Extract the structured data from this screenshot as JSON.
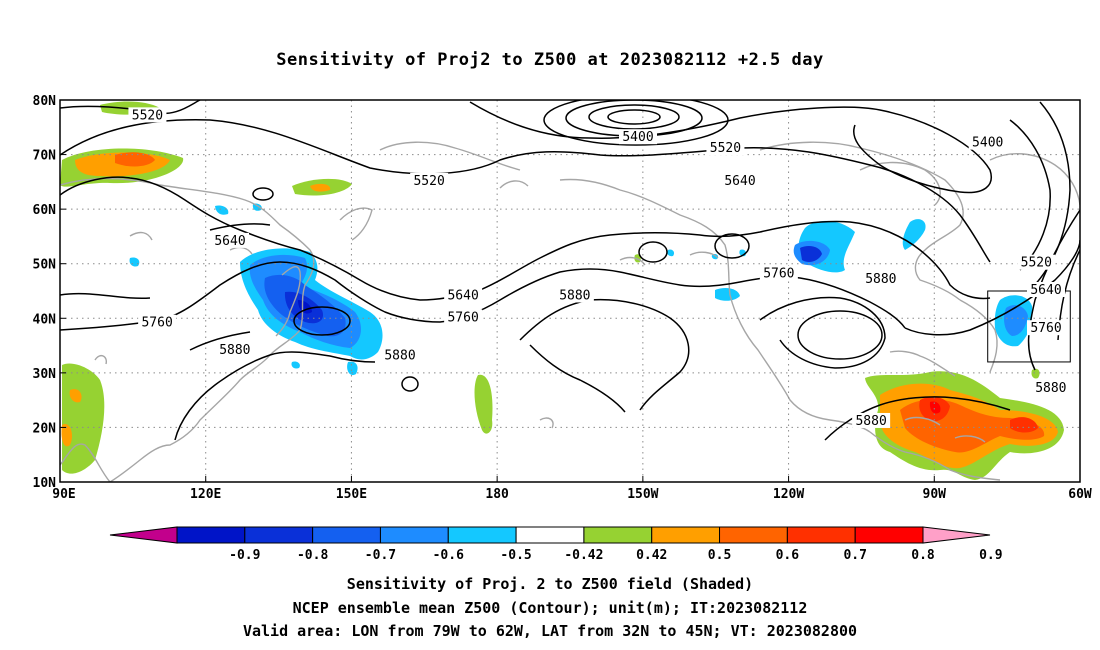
{
  "title": "Sensitivity of Proj2 to Z500 at 2023082112 +2.5 day",
  "axes": {
    "lon_ticks": [
      "90E",
      "120E",
      "150E",
      "180",
      "150W",
      "120W",
      "90W",
      "60W"
    ],
    "lat_ticks": [
      "10N",
      "20N",
      "30N",
      "40N",
      "50N",
      "60N",
      "70N",
      "80N"
    ],
    "lon_range": [
      90,
      300
    ],
    "lat_range": [
      10,
      80
    ],
    "gridlines": "dotted"
  },
  "contour_labels": [
    {
      "text": "5520",
      "lon": 108,
      "lat": 77
    },
    {
      "text": "5400",
      "lon": 209,
      "lat": 73
    },
    {
      "text": "5520",
      "lon": 227,
      "lat": 71
    },
    {
      "text": "5400",
      "lon": 281,
      "lat": 72
    },
    {
      "text": "5520",
      "lon": 166,
      "lat": 65
    },
    {
      "text": "5640",
      "lon": 230,
      "lat": 65
    },
    {
      "text": "5640",
      "lon": 125,
      "lat": 54
    },
    {
      "text": "5520",
      "lon": 291,
      "lat": 50
    },
    {
      "text": "5760",
      "lon": 238,
      "lat": 48
    },
    {
      "text": "5880",
      "lon": 259,
      "lat": 47
    },
    {
      "text": "5640",
      "lon": 293,
      "lat": 45
    },
    {
      "text": "5640",
      "lon": 173,
      "lat": 44
    },
    {
      "text": "5880",
      "lon": 196,
      "lat": 44
    },
    {
      "text": "5760",
      "lon": 173,
      "lat": 40
    },
    {
      "text": "5760",
      "lon": 110,
      "lat": 39
    },
    {
      "text": "5760",
      "lon": 293,
      "lat": 38
    },
    {
      "text": "5880",
      "lon": 126,
      "lat": 34
    },
    {
      "text": "5880",
      "lon": 160,
      "lat": 33
    },
    {
      "text": "5880",
      "lon": 294,
      "lat": 27
    },
    {
      "text": "5880",
      "lon": 257,
      "lat": 21
    }
  ],
  "valid_box": {
    "lon_min": 281,
    "lon_max": 298,
    "lat_min": 32,
    "lat_max": 45
  },
  "colorbar": {
    "labels": [
      "-0.9",
      "-0.8",
      "-0.7",
      "-0.6",
      "-0.5",
      "-0.42",
      "0.42",
      "0.5",
      "0.6",
      "0.7",
      "0.8",
      "0.9"
    ],
    "colors": [
      "#c2008c",
      "#0014c8",
      "#0a30d8",
      "#1460f0",
      "#1e8cff",
      "#14c8ff",
      "#ffffff",
      "#96d232",
      "#ff9f00",
      "#ff6400",
      "#ff3000",
      "#ff0000",
      "#ffa0c8"
    ]
  },
  "captions": [
    "Sensitivity of Proj. 2 to Z500 field (Shaded)",
    "NCEP ensemble mean Z500 (Contour); unit(m); IT:2023082112",
    "Valid area: LON from 79W to 62W, LAT from 32N to 45N; VT: 2023082800"
  ]
}
